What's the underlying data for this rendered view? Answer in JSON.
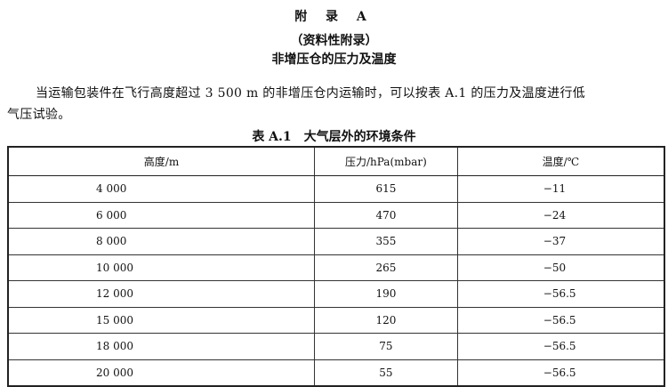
{
  "appendix": {
    "title": "附 录 A",
    "subtitle": "（资料性附录）",
    "heading": "非增压仓的压力及温度"
  },
  "paragraph": {
    "line1": "当运输包装件在飞行高度超过 3 500 m 的非增压仓内运输时，可以按表 A.1 的压力及温度进行低",
    "line2": "气压试验。"
  },
  "table": {
    "caption": "表 A.1　大气层外的环境条件",
    "headers": [
      "高度/m",
      "压力/hPa(mbar)",
      "温度/℃"
    ],
    "rows": [
      [
        "4 000",
        "615",
        "−11"
      ],
      [
        "6 000",
        "470",
        "−24"
      ],
      [
        "8 000",
        "355",
        "−37"
      ],
      [
        "10 000",
        "265",
        "−50"
      ],
      [
        "12 000",
        "190",
        "−56.5"
      ],
      [
        "15 000",
        "120",
        "−56.5"
      ],
      [
        "18 000",
        "75",
        "−56.5"
      ],
      [
        "20 000",
        "55",
        "−56.5"
      ]
    ]
  }
}
